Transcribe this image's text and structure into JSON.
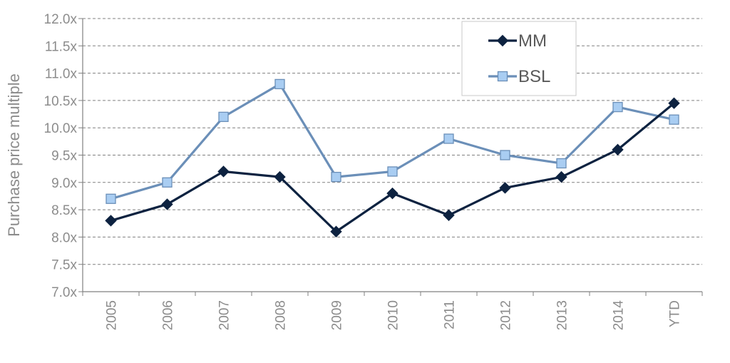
{
  "chart_data": {
    "type": "line",
    "categories": [
      "2005",
      "2006",
      "2007",
      "2008",
      "2009",
      "2010",
      "2011",
      "2012",
      "2013",
      "2014",
      "YTD"
    ],
    "series": [
      {
        "name": "MM",
        "values": [
          8.3,
          8.6,
          9.2,
          9.1,
          8.1,
          8.8,
          8.4,
          8.9,
          9.1,
          9.6,
          10.45
        ],
        "color": "#0d2240",
        "marker": "diamond"
      },
      {
        "name": "BSL",
        "values": [
          8.7,
          9.0,
          10.2,
          10.8,
          9.1,
          9.2,
          9.8,
          9.5,
          9.35,
          10.38,
          10.15
        ],
        "color": "#6b8fb8",
        "marker_fill": "#a9cdf2",
        "marker": "square"
      }
    ],
    "ylabel": "Purchase price multiple",
    "xlabel": "",
    "ylim": [
      7.0,
      12.0
    ],
    "ytick_step": 0.5,
    "ytick_labels": [
      "7.0x",
      "7.5x",
      "8.0x",
      "8.5x",
      "9.0x",
      "9.5x",
      "10.0x",
      "10.5x",
      "11.0x",
      "11.5x",
      "12.0x"
    ],
    "grid": "horizontal dashed",
    "legend_position": "top-right",
    "axis_color": "#808080",
    "grid_color": "#808080"
  }
}
